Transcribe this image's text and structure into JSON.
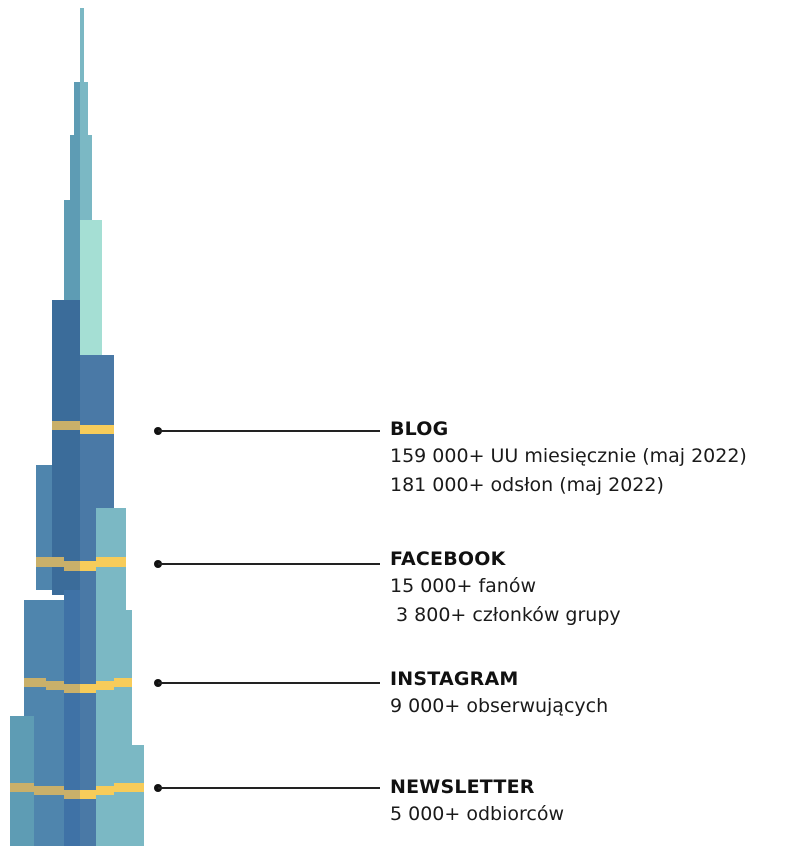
{
  "stats": [
    {
      "title": "BLOG",
      "lines": [
        "159 000+ UU miesięcznie (maj 2022)",
        "181 000+ odsłon (maj 2022)"
      ]
    },
    {
      "title": "FACEBOOK",
      "lines": [
        "15 000+ fanów",
        " 3 800+ członków grupy"
      ]
    },
    {
      "title": "INSTAGRAM",
      "lines": [
        "9 000+ obserwujących"
      ]
    },
    {
      "title": "NEWSLETTER",
      "lines": [
        "5 000+ odbiorców"
      ]
    }
  ],
  "colors": {
    "tower_light": "#7bb8c4",
    "tower_mid": "#5e9cb4",
    "tower_dark": "#3b6c9a",
    "tower_core": "#3f72a6",
    "tower_mint": "#a5dfd4",
    "band_gold": "#f7cc5a",
    "band_gold_dark": "#c9b06a"
  }
}
